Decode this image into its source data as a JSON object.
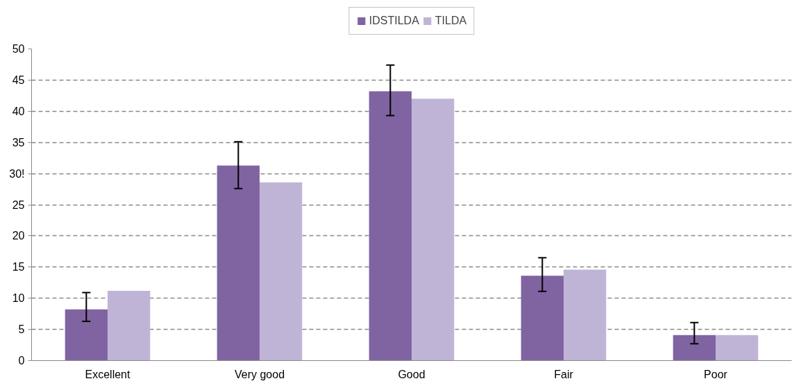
{
  "chart_data": {
    "type": "bar",
    "categories": [
      "Excellent",
      "Very good",
      "Good",
      "Fair",
      "Poor"
    ],
    "series": [
      {
        "name": "IDSTILDA",
        "color": "#8064a2",
        "values": [
          8.2,
          31.3,
          43.2,
          13.6,
          4.1
        ],
        "errors": [
          [
            6.3,
            10.9
          ],
          [
            27.6,
            35.1
          ],
          [
            39.3,
            47.4
          ],
          [
            11.1,
            16.5
          ],
          [
            2.7,
            6.1
          ]
        ]
      },
      {
        "name": "TILDA",
        "color": "#c0b4d6",
        "values": [
          11.2,
          28.6,
          42.0,
          14.6,
          4.1
        ]
      }
    ],
    "ylim": [
      0,
      50
    ],
    "yticks": [
      0,
      5,
      10,
      15,
      20,
      25,
      {
        "value": 30,
        "label": "30!"
      },
      35,
      40,
      45,
      50
    ],
    "grid": "y",
    "legend": "top"
  }
}
